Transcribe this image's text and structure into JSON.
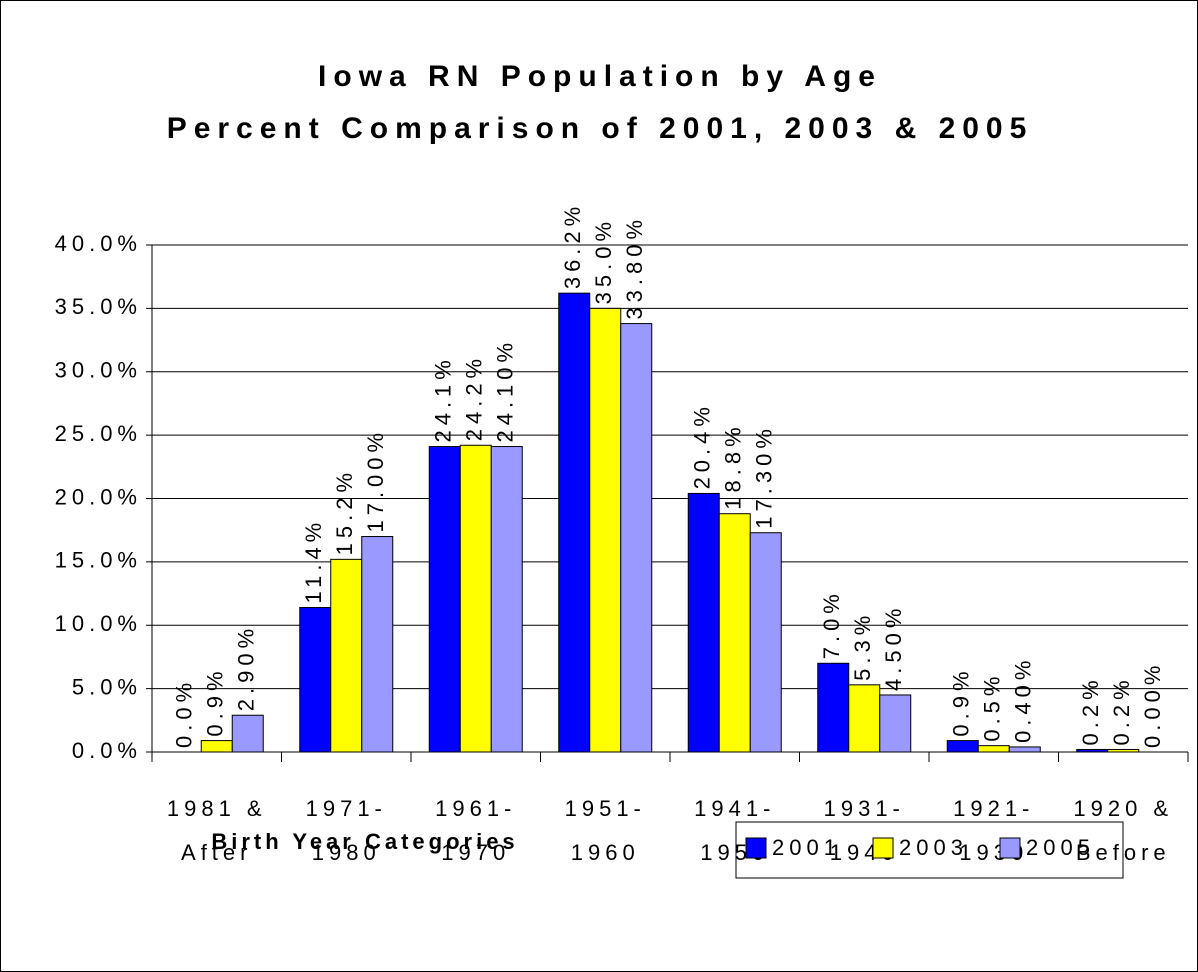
{
  "chart_data": {
    "type": "bar",
    "title": "Iowa RN Population by Age",
    "subtitle": "Percent Comparison of 2001, 2003 & 2005",
    "x_label": "Birth Year Categories",
    "categories": [
      [
        "1981 &",
        "After"
      ],
      [
        "1971-",
        "1980"
      ],
      [
        "1961-",
        "1970"
      ],
      [
        "1951-",
        "1960"
      ],
      [
        "1941-",
        "1950"
      ],
      [
        "1931-",
        "1940"
      ],
      [
        "1921-",
        "1930"
      ],
      [
        "1920 &",
        "Before"
      ]
    ],
    "series": [
      {
        "name": "2001",
        "color": "#0000ff",
        "values": [
          0.0,
          11.4,
          24.1,
          36.2,
          20.4,
          7.0,
          0.9,
          0.2
        ],
        "value_labels": [
          "0.0%",
          "11.4%",
          "24.1%",
          "36.2%",
          "20.4%",
          "7.0%",
          "0.9%",
          "0.2%"
        ]
      },
      {
        "name": "2003",
        "color": "#ffff00",
        "values": [
          0.9,
          15.2,
          24.2,
          35.0,
          18.8,
          5.3,
          0.5,
          0.2
        ],
        "value_labels": [
          "0.9%",
          "15.2%",
          "24.2%",
          "35.0%",
          "18.8%",
          "5.3%",
          "0.5%",
          "0.2%"
        ]
      },
      {
        "name": "2005",
        "color": "#9999ff",
        "values": [
          2.9,
          17.0,
          24.1,
          33.8,
          17.3,
          4.5,
          0.4,
          0.0
        ],
        "value_labels": [
          "2.90%",
          "17.00%",
          "24.10%",
          "33.80%",
          "17.30%",
          "4.50%",
          "0.40%",
          "0.00%"
        ]
      }
    ],
    "ylim": [
      0,
      40
    ],
    "yticks": [
      {
        "value": 0,
        "label": "0.0%"
      },
      {
        "value": 5,
        "label": "5.0%"
      },
      {
        "value": 10,
        "label": "10.0%"
      },
      {
        "value": 15,
        "label": "15.0%"
      },
      {
        "value": 20,
        "label": "20.0%"
      },
      {
        "value": 25,
        "label": "25.0%"
      },
      {
        "value": 30,
        "label": "30.0%"
      },
      {
        "value": 35,
        "label": "35.0%"
      },
      {
        "value": 40,
        "label": "40.0%"
      }
    ],
    "grid": true,
    "legend": "bottom-right"
  }
}
